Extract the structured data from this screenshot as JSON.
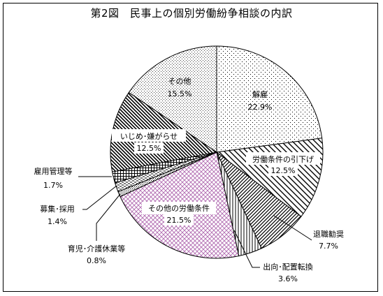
{
  "chart_data": {
    "type": "pie",
    "title": "第2図　民事上の個別労働紛争相談の内訳",
    "unit": "%",
    "start_angle_deg": 0,
    "direction": "clockwise",
    "slices": [
      {
        "label": "解雇",
        "value": 22.9,
        "value_label": "22.9%",
        "pattern": "dots-sparse"
      },
      {
        "label": "労働条件の引下げ",
        "value": 12.5,
        "value_label": "12.5%",
        "pattern": "diag-down"
      },
      {
        "label": "退職勧奨",
        "value": 7.7,
        "value_label": "7.7%",
        "pattern": "diag-up-dense"
      },
      {
        "label": "出向･配置転換",
        "value": 3.6,
        "value_label": "3.6%",
        "pattern": "vertical"
      },
      {
        "label": "その他の労働条件",
        "value": 21.5,
        "value_label": "21.5%",
        "pattern": "crosshatch-magenta"
      },
      {
        "label": "育児･介護休業等",
        "value": 0.8,
        "value_label": "0.8%",
        "pattern": "dots-dense"
      },
      {
        "label": "募集･採用",
        "value": 1.4,
        "value_label": "1.4%",
        "pattern": "dashes"
      },
      {
        "label": "雇用管理等",
        "value": 1.7,
        "value_label": "1.7%",
        "pattern": "grid"
      },
      {
        "label": "いじめ･嫌がらせ",
        "value": 12.5,
        "value_label": "12.5%",
        "pattern": "diag-down-dense"
      },
      {
        "label": "その他",
        "value": 15.5,
        "value_label": "15.5%",
        "pattern": "dots-fine"
      }
    ]
  }
}
